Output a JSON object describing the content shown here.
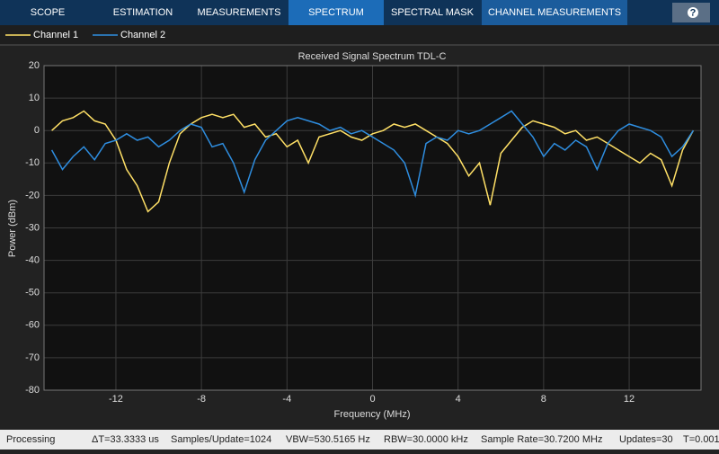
{
  "toolbar": {
    "tabs": [
      "SCOPE",
      "ESTIMATION",
      "MEASUREMENTS",
      "SPECTRUM",
      "SPECTRAL MASK",
      "CHANNEL MEASUREMENTS"
    ],
    "help": "?"
  },
  "status_bar": [
    "Processing",
    "ΔT=33.3333 us",
    "Samples/Update=1024",
    "VBW=530.5165 Hz",
    "RBW=30.0000 kHz",
    "Sample Rate=30.7200 MHz",
    "Updates=30",
    "T=0.001"
  ],
  "chart_data": {
    "type": "line",
    "title": "Received Signal Spectrum TDL-C",
    "x_label": "Frequency (MHz)",
    "y_label": "Power (dBm)",
    "xlim": [
      -15.36,
      15.36
    ],
    "ylim": [
      -80,
      20
    ],
    "xticks": [
      -12,
      -8,
      -4,
      0,
      4,
      8,
      12
    ],
    "yticks": [
      20,
      10,
      0,
      -10,
      -20,
      -30,
      -40,
      -50,
      -60,
      -70,
      -80
    ],
    "grid": true,
    "legend": "top-left",
    "x": [
      -15,
      -14.5,
      -14,
      -13.5,
      -13,
      -12.5,
      -12,
      -11.5,
      -11,
      -10.5,
      -10,
      -9.5,
      -9,
      -8.5,
      -8,
      -7.5,
      -7,
      -6.5,
      -6,
      -5.5,
      -5,
      -4.5,
      -4,
      -3.5,
      -3,
      -2.5,
      -2,
      -1.5,
      -1,
      -0.5,
      0,
      0.5,
      1,
      1.5,
      2,
      2.5,
      3,
      3.5,
      4,
      4.5,
      5,
      5.5,
      6,
      6.5,
      7,
      7.5,
      8,
      8.5,
      9,
      9.5,
      10,
      10.5,
      11,
      11.5,
      12,
      12.5,
      13,
      13.5,
      14,
      14.5,
      15
    ],
    "series": [
      {
        "name": "Channel 1",
        "color": "#ffe066",
        "values": [
          0,
          3,
          4,
          6,
          3,
          2,
          -3,
          -12,
          -17,
          -25,
          -22,
          -10,
          -1,
          2,
          4,
          5,
          4,
          5,
          1,
          2,
          -2,
          -1,
          -5,
          -3,
          -10,
          -2,
          -1,
          0,
          -2,
          -3,
          -1,
          0,
          2,
          1,
          2,
          0,
          -2,
          -4,
          -8,
          -14,
          -10,
          -23,
          -7,
          -3,
          1,
          3,
          2,
          1,
          -1,
          0,
          -3,
          -2,
          -4,
          -6,
          -8,
          -10,
          -7,
          -9,
          -17,
          -6,
          0
        ]
      },
      {
        "name": "Channel 2",
        "color": "#2e8ddf",
        "values": [
          -6,
          -12,
          -8,
          -5,
          -9,
          -4,
          -3,
          -1,
          -3,
          -2,
          -5,
          -3,
          0,
          2,
          1,
          -5,
          -4,
          -10,
          -19,
          -9,
          -3,
          0,
          3,
          4,
          3,
          2,
          0,
          1,
          -1,
          0,
          -2,
          -4,
          -6,
          -10,
          -20,
          -4,
          -2,
          -3,
          0,
          -1,
          0,
          2,
          4,
          6,
          2,
          -2,
          -8,
          -4,
          -6,
          -3,
          -5,
          -12,
          -4,
          0,
          2,
          1,
          0,
          -2,
          -8,
          -5,
          0
        ]
      }
    ]
  }
}
